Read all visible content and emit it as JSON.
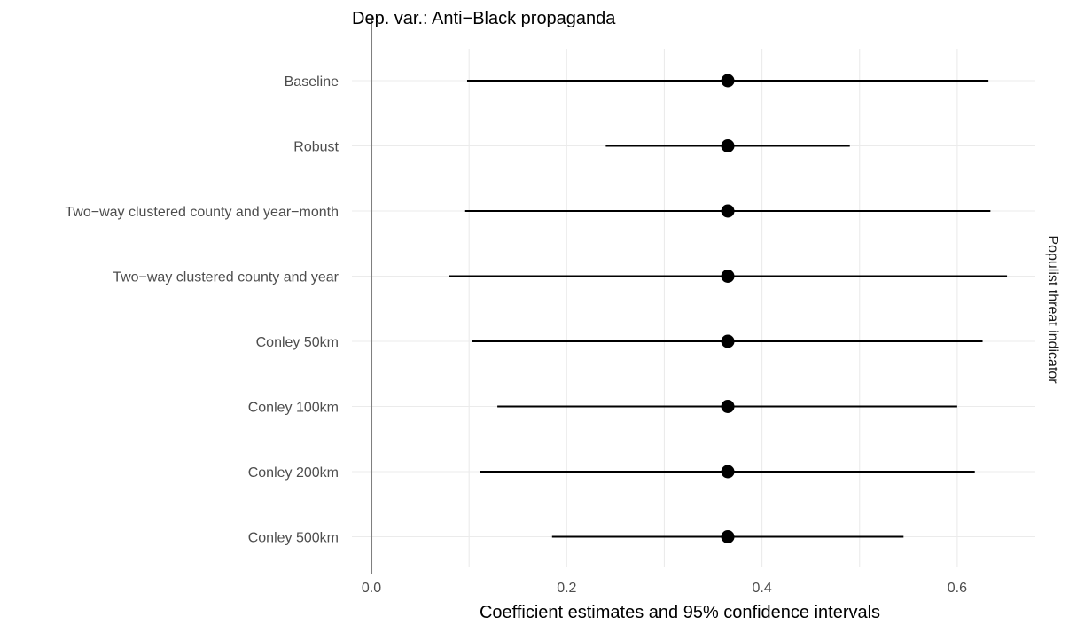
{
  "chart_data": {
    "type": "errorbar-dotplot",
    "title": "Dep. var.: Anti−Black propaganda",
    "xlabel": "Coefficient estimates and 95% confidence intervals",
    "facet_label": "Populist threat indicator",
    "xlim": [
      -0.02,
      0.68
    ],
    "x_ticks": [
      0.0,
      0.2,
      0.4,
      0.6
    ],
    "x_tick_labels": [
      "0.0",
      "0.2",
      "0.4",
      "0.6"
    ],
    "reference_line_x": 0,
    "grid": true,
    "categories": [
      "Baseline",
      "Robust",
      "Two−way clustered county and year−month",
      "Two−way clustered county and year",
      "Conley 50km",
      "Conley 100km",
      "Conley 200km",
      "Conley 500km"
    ],
    "estimates": [
      0.365,
      0.365,
      0.365,
      0.365,
      0.365,
      0.365,
      0.365,
      0.365
    ],
    "ci_low": [
      0.098,
      0.24,
      0.096,
      0.079,
      0.103,
      0.129,
      0.111,
      0.185
    ],
    "ci_high": [
      0.632,
      0.49,
      0.634,
      0.651,
      0.626,
      0.6,
      0.618,
      0.545
    ],
    "colors": {
      "point": "#000000",
      "interval": "#000000",
      "reference_line": "#7f7f7f",
      "grid": "#ebebeb",
      "axis_text": "#4d4d4d"
    }
  }
}
